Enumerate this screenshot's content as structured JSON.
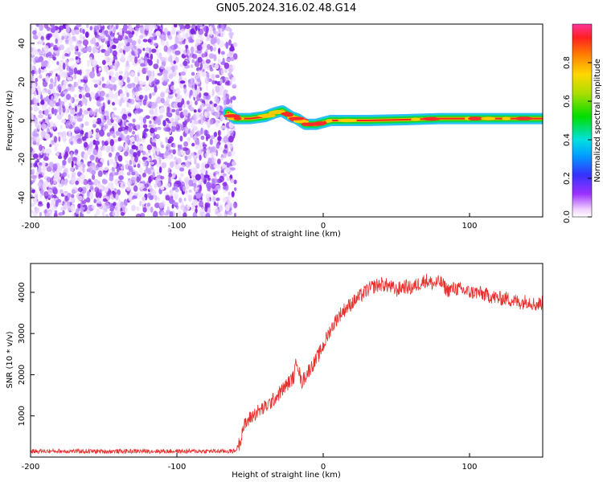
{
  "page_title": "GN05.2024.316.02.48.G14",
  "chart_data": [
    {
      "type": "heatmap",
      "title": "GN05.2024.316.02.48.G14",
      "xlabel": "Height of straight line (km)",
      "ylabel": "Frequency (Hz)",
      "xlim": [
        -200,
        150
      ],
      "ylim": [
        -50,
        50
      ],
      "x_ticks": [
        -200,
        -100,
        0,
        100
      ],
      "y_ticks": [
        40,
        20,
        0,
        -20,
        -40
      ],
      "x_tick_labels": [
        "-200",
        "-100",
        "0",
        "100"
      ],
      "y_tick_labels": [
        "40",
        "20",
        "0",
        "-20",
        "-40"
      ],
      "colorbar": {
        "label": "Normalized spectral amplitude",
        "range": [
          0,
          1
        ],
        "ticks": [
          0.0,
          0.2,
          0.4,
          0.6,
          0.8
        ],
        "tick_labels": [
          "0.0",
          "0.2",
          "0.4",
          "0.6",
          "0.8"
        ],
        "colormap": "rainbow"
      },
      "noise_region": {
        "x_range": [
          -200,
          -60
        ],
        "freq_range": [
          -50,
          50
        ],
        "amplitude": "low",
        "color": "#8a2be2"
      },
      "signal_track": [
        {
          "x": -65,
          "freq": 4
        },
        {
          "x": -60,
          "freq": 1
        },
        {
          "x": -50,
          "freq": 1
        },
        {
          "x": -40,
          "freq": 2
        },
        {
          "x": -33,
          "freq": 4
        },
        {
          "x": -28,
          "freq": 5
        },
        {
          "x": -22,
          "freq": 2
        },
        {
          "x": -18,
          "freq": 1
        },
        {
          "x": -12,
          "freq": -2
        },
        {
          "x": -5,
          "freq": -2
        },
        {
          "x": 5,
          "freq": 0
        },
        {
          "x": 30,
          "freq": 0
        },
        {
          "x": 60,
          "freq": 0.5
        },
        {
          "x": 80,
          "freq": 1
        },
        {
          "x": 110,
          "freq": 1
        },
        {
          "x": 150,
          "freq": 1
        }
      ],
      "grid": false
    },
    {
      "type": "line",
      "xlabel": "Height of straight line (km)",
      "ylabel": "SNR (10 * v/v)",
      "xlim": [
        -200,
        150
      ],
      "ylim": [
        0,
        4700
      ],
      "x_ticks": [
        -200,
        -100,
        0,
        100
      ],
      "y_ticks": [
        1000,
        2000,
        3000,
        4000
      ],
      "x_tick_labels": [
        "-200",
        "-100",
        "0",
        "100"
      ],
      "y_tick_labels": [
        "1000",
        "2000",
        "3000",
        "4000"
      ],
      "grid": false,
      "series": [
        {
          "color": "#e8302e",
          "x": [
            -200,
            -180,
            -160,
            -140,
            -120,
            -100,
            -80,
            -65,
            -60,
            -57,
            -55,
            -50,
            -45,
            -40,
            -35,
            -30,
            -25,
            -20,
            -18,
            -15,
            -10,
            -5,
            0,
            5,
            10,
            15,
            20,
            25,
            30,
            35,
            40,
            45,
            50,
            55,
            60,
            65,
            70,
            75,
            80,
            85,
            90,
            95,
            100,
            105,
            110,
            115,
            120,
            125,
            130,
            135,
            140,
            145,
            150
          ],
          "values": [
            140,
            145,
            140,
            140,
            145,
            140,
            145,
            140,
            150,
            350,
            700,
            950,
            1100,
            1200,
            1350,
            1550,
            1750,
            1950,
            2400,
            1800,
            2100,
            2350,
            2700,
            3100,
            3400,
            3600,
            3750,
            3900,
            4050,
            4150,
            4200,
            4150,
            4050,
            4150,
            4100,
            4200,
            4300,
            4200,
            4250,
            4050,
            4100,
            4050,
            4000,
            4000,
            3950,
            3900,
            3850,
            3850,
            3800,
            3750,
            3800,
            3700,
            3750
          ],
          "noise_amplitude": 180
        }
      ]
    }
  ]
}
